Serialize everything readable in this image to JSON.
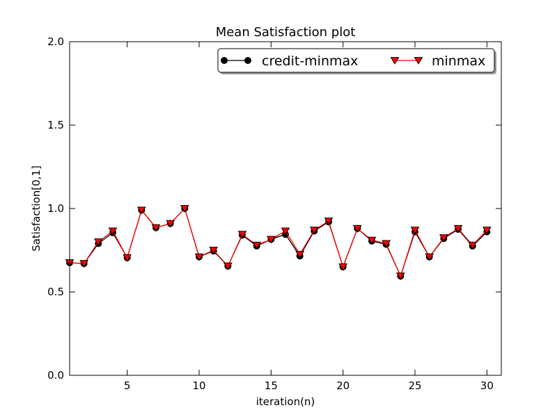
{
  "chart_data": {
    "type": "line",
    "title": "Mean Satisfaction plot",
    "xlabel": "iteration(n)",
    "ylabel": "Satisfaction[0,1]",
    "xlim": [
      1,
      31
    ],
    "ylim": [
      0.0,
      2.0
    ],
    "xticks": [
      5,
      10,
      15,
      20,
      25,
      30
    ],
    "yticks": [
      0.0,
      0.5,
      1.0,
      1.5,
      2.0
    ],
    "ytick_labels": [
      "0.0",
      "0.5",
      "1.0",
      "1.5",
      "2.0"
    ],
    "grid": false,
    "legend_position": "top-right",
    "x": [
      1,
      2,
      3,
      4,
      5,
      6,
      7,
      8,
      9,
      10,
      11,
      12,
      13,
      14,
      15,
      16,
      17,
      18,
      19,
      20,
      21,
      22,
      23,
      24,
      25,
      26,
      27,
      28,
      29,
      30
    ],
    "series": [
      {
        "name": "credit-minmax",
        "color": "#000000",
        "marker": "circle",
        "values": [
          0.675,
          0.67,
          0.79,
          0.855,
          0.705,
          0.99,
          0.885,
          0.91,
          1.0,
          0.71,
          0.745,
          0.655,
          0.84,
          0.775,
          0.815,
          0.845,
          0.715,
          0.865,
          0.92,
          0.65,
          0.88,
          0.805,
          0.785,
          0.595,
          0.86,
          0.71,
          0.82,
          0.875,
          0.775,
          0.86
        ]
      },
      {
        "name": "minmax",
        "color": "#ff0000",
        "marker": "triangle-down",
        "values": [
          0.675,
          0.67,
          0.8,
          0.865,
          0.705,
          0.99,
          0.885,
          0.91,
          1.0,
          0.71,
          0.75,
          0.655,
          0.845,
          0.78,
          0.815,
          0.865,
          0.725,
          0.87,
          0.925,
          0.65,
          0.88,
          0.81,
          0.79,
          0.595,
          0.87,
          0.71,
          0.825,
          0.88,
          0.78,
          0.87
        ]
      }
    ]
  }
}
